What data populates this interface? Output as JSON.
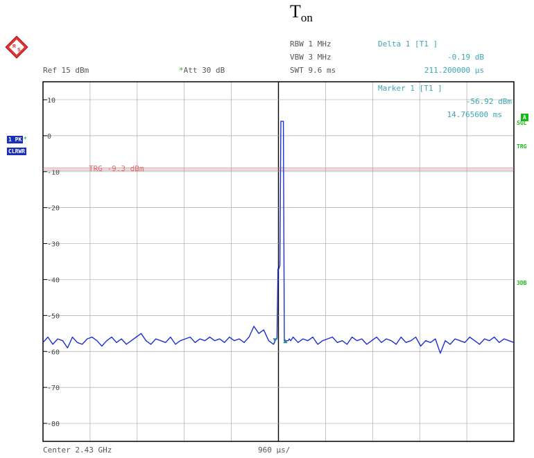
{
  "header": {
    "title_main": "T",
    "title_sub": "on",
    "ref": "Ref  15 dBm",
    "att_star": "*",
    "att": "Att  30 dB",
    "rbw": "RBW 1 MHz",
    "vbw": "VBW 3 MHz",
    "swt": "SWT 9.6 ms",
    "delta_label": "Delta 1 [T1 ]",
    "delta_value": "-0.19 dB",
    "delta_time": "211.200000 µs"
  },
  "marker": {
    "label": "Marker 1 [T1 ]",
    "level": "-56.92 dBm",
    "time": "14.765600 ms"
  },
  "left_badges": {
    "trace": "1 PK",
    "trace_star": "*",
    "mode": "CLRWR"
  },
  "right_badges": {
    "a": "A",
    "sgl": "SGL",
    "trg": "TRG",
    "db3": "3DB"
  },
  "footer": {
    "center": "Center 2.43 GHz",
    "span": "960 µs/"
  },
  "colors": {
    "trace": "#1a2fd0",
    "trigger": "#e07070",
    "marker": "#2a8a8a",
    "grid": "#aaaaaa",
    "frame": "#000000",
    "annotation": "#3aa6b5"
  },
  "chart_data": {
    "type": "line",
    "title": "Ton",
    "xlabel": "Center 2.43 GHz   960 µs/",
    "ylabel": "",
    "x_unit": "µs",
    "x_range": [
      0,
      9600
    ],
    "ylim": [
      -85,
      15
    ],
    "y_ticks": [
      10,
      0,
      -10,
      -20,
      -30,
      -40,
      -50,
      -60,
      -70,
      -80
    ],
    "y_tick_labels": [
      "10",
      "0",
      "-10",
      "-20",
      "-30",
      "-40",
      "-50",
      "-60",
      "-70",
      "-80"
    ],
    "grid": true,
    "trigger_level": -9.3,
    "trigger_label": "TRG -9.3 dBm",
    "series": [
      {
        "x": [
          0,
          100,
          200,
          300,
          400,
          500,
          600,
          700,
          800,
          900,
          1000,
          1100,
          1200,
          1300,
          1400,
          1500,
          1600,
          1700,
          1800,
          1900,
          2000,
          2100,
          2200,
          2300,
          2400,
          2500,
          2600,
          2700,
          2800,
          2900,
          3000,
          3100,
          3200,
          3300,
          3400,
          3500,
          3600,
          3700,
          3800,
          3900,
          4000,
          4100,
          4200,
          4300,
          4400,
          4500,
          4600,
          4700,
          4750,
          4770,
          4790,
          4810,
          4830,
          4850,
          4870,
          4880,
          4890,
          4900,
          4920,
          4950,
          5000,
          5020,
          5050,
          5100,
          5200,
          5300,
          5400,
          5500,
          5600,
          5700,
          5800,
          5900,
          6000,
          6100,
          6200,
          6300,
          6400,
          6500,
          6600,
          6700,
          6800,
          6900,
          7000,
          7100,
          7200,
          7300,
          7400,
          7500,
          7600,
          7700,
          7800,
          7900,
          8000,
          8100,
          8200,
          8300,
          8400,
          8500,
          8600,
          8700,
          8800,
          8900,
          9000,
          9100,
          9200,
          9300,
          9400,
          9500,
          9600
        ],
        "y": [
          -57.5,
          -56,
          -58,
          -56.5,
          -57,
          -59,
          -56,
          -57.5,
          -58,
          -56.5,
          -56,
          -57,
          -58.5,
          -57,
          -56,
          -57.5,
          -56.5,
          -58,
          -57,
          -56,
          -55,
          -57,
          -58,
          -56.5,
          -57,
          -57.5,
          -56,
          -58,
          -57,
          -56.5,
          -56,
          -57.5,
          -56.5,
          -57,
          -56,
          -57,
          -56.5,
          -57.5,
          -56,
          -57,
          -56.5,
          -57.5,
          -56,
          -53,
          -55,
          -54,
          -57,
          -58,
          -56.5,
          -56.5,
          -37,
          -37,
          -36,
          4,
          4,
          4,
          4,
          4,
          -57,
          -57,
          -57,
          -56.5,
          -57,
          -56,
          -57.5,
          -56.5,
          -57,
          -56,
          -58,
          -57,
          -56.5,
          -56,
          -57.5,
          -57,
          -58,
          -56,
          -57,
          -56.5,
          -58,
          -57,
          -56,
          -57.5,
          -56.5,
          -57,
          -58,
          -56,
          -57.5,
          -57,
          -56,
          -58.5,
          -57,
          -57.5,
          -56.5,
          -60.5,
          -57,
          -58,
          -56.5,
          -57,
          -57.5,
          -56,
          -57,
          -58,
          -56.5,
          -57,
          -56,
          -57.5,
          -56.5,
          -57,
          -57.5
        ]
      }
    ],
    "markers": [
      {
        "label": "Marker 1 [T1 ]",
        "x": 4730,
        "y": -56.92
      },
      {
        "label": "Delta 1 [T1 ]",
        "x": 4941,
        "y": -57.11
      }
    ]
  }
}
